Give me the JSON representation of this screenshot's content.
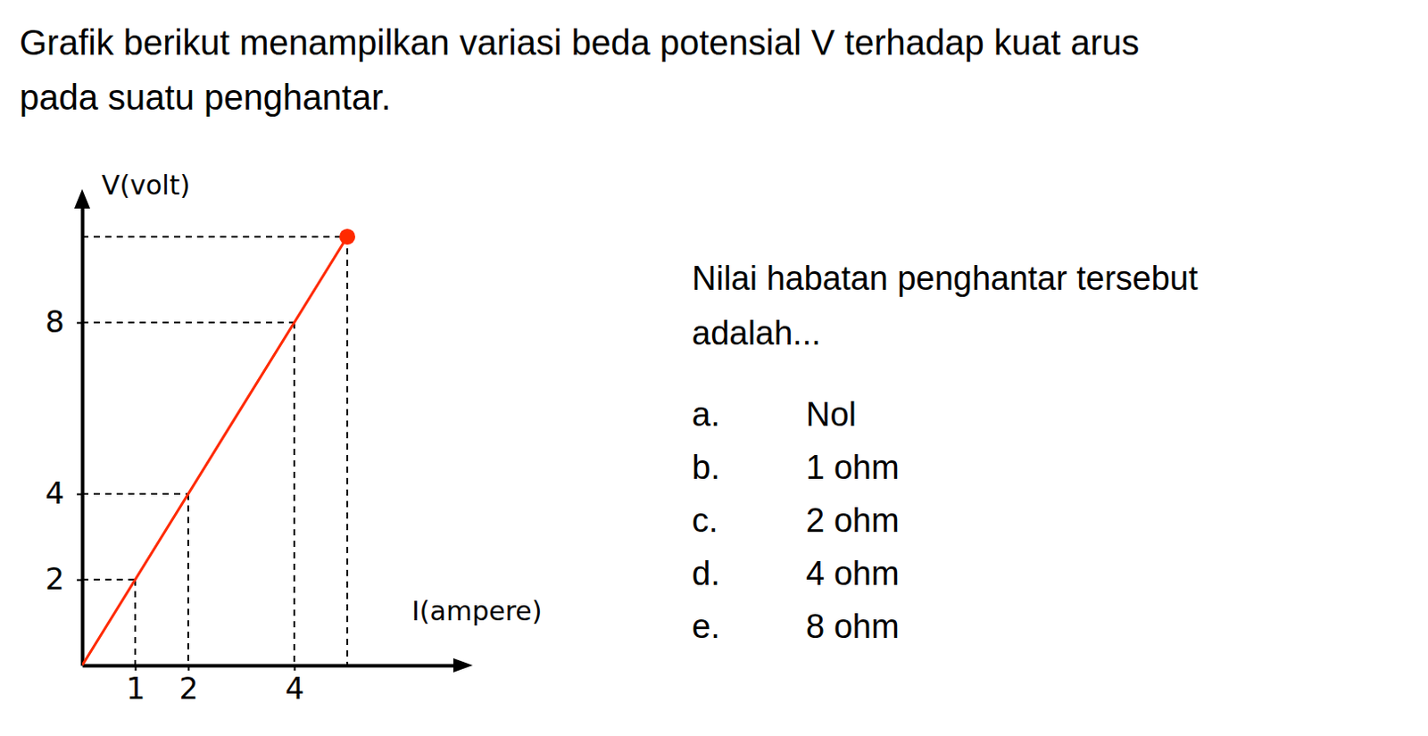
{
  "question_lines": [
    "Grafik berikut menampilkan variasi beda potensial V terhadap kuat arus",
    "pada suatu penghantar."
  ],
  "chart_data": {
    "type": "line",
    "x_label": "I(ampere)",
    "y_label": "V(volt)",
    "x": [
      0,
      1,
      2,
      4,
      5
    ],
    "values": [
      0,
      2,
      4,
      8,
      10
    ],
    "color": "#ff2a00",
    "xlim": [
      0,
      7
    ],
    "ylim": [
      0,
      10.7
    ],
    "xticks": [
      1,
      2,
      4
    ],
    "yticks": [
      2,
      4,
      8
    ],
    "grid": false
  },
  "prompt_lines": [
    "Nilai habatan penghantar tersebut",
    "adalah..."
  ],
  "options": [
    {
      "letter": "a.",
      "text": "Nol"
    },
    {
      "letter": "b.",
      "text": "1 ohm"
    },
    {
      "letter": "c.",
      "text": "2 ohm"
    },
    {
      "letter": "d.",
      "text": "4 ohm"
    },
    {
      "letter": "e.",
      "text": "8 ohm"
    }
  ]
}
